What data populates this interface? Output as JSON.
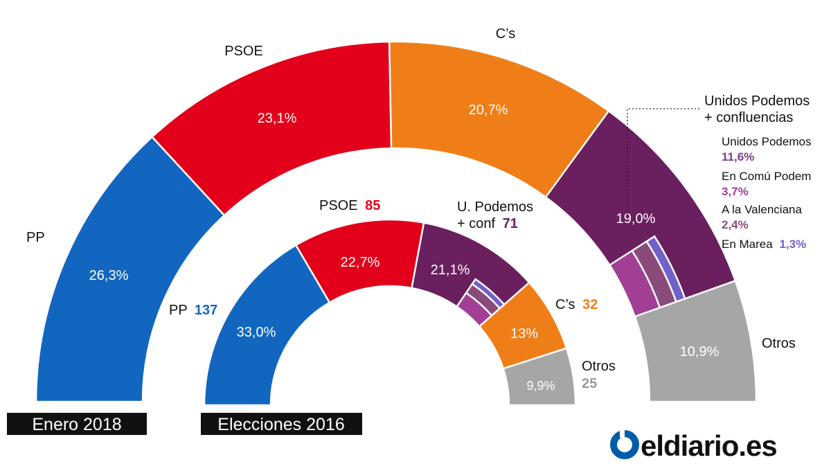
{
  "chart_data": [
    {
      "type": "pie",
      "variant": "semicircle-donut",
      "label": "Enero 2018",
      "slices": [
        {
          "name": "PP",
          "value": 26.3,
          "value_label": "26,3%",
          "color": "#1266c0"
        },
        {
          "name": "PSOE",
          "value": 23.1,
          "value_label": "23,1%",
          "color": "#e2001a"
        },
        {
          "name": "C’s",
          "value": 20.7,
          "value_label": "20,7%",
          "color": "#f07e18"
        },
        {
          "name": "Unidos Podemos\n+ confluencias",
          "value": 19.0,
          "value_label": "19,0%",
          "color": "#6a1f5e"
        },
        {
          "name": "Otros",
          "value": 10.9,
          "value_label": "10,9%",
          "color": "#a6a6a6"
        }
      ],
      "breakdown": {
        "parent": "Unidos Podemos\n+ confluencias",
        "items": [
          {
            "name": "Unidos Podemos",
            "value": 11.6,
            "value_label": "11,6%",
            "color": "#6a1f5e"
          },
          {
            "name": "En Comú Podem",
            "value": 3.7,
            "value_label": "3,7%",
            "color": "#a23f94"
          },
          {
            "name": "A la Valenciana",
            "value": 2.4,
            "value_label": "2,4%",
            "color": "#8b4b7a"
          },
          {
            "name": "En Marea",
            "value": 1.3,
            "value_label": "1,3%",
            "color": "#7161c9"
          }
        ]
      }
    },
    {
      "type": "pie",
      "variant": "semicircle-donut",
      "label": "Elecciones 2016",
      "slices": [
        {
          "name": "PP",
          "seats": "137",
          "value": 33.0,
          "value_label": "33,0%",
          "color": "#1266c0"
        },
        {
          "name": "PSOE",
          "seats": "85",
          "value": 22.7,
          "value_label": "22,7%",
          "color": "#e2001a"
        },
        {
          "name": "U. Podemos\n+ conf",
          "seats": "71",
          "value": 21.1,
          "value_label": "21,1%",
          "color": "#6a1f5e"
        },
        {
          "name": "C’s",
          "seats": "32",
          "value": 13.0,
          "value_label": "13%",
          "color": "#f07e18"
        },
        {
          "name": "Otros",
          "seats": "25",
          "value": 9.9,
          "value_label": "9,9%",
          "color": "#a6a6a6"
        }
      ]
    }
  ],
  "logo": {
    "text": "eldiario.es",
    "color": "#005ca9"
  }
}
